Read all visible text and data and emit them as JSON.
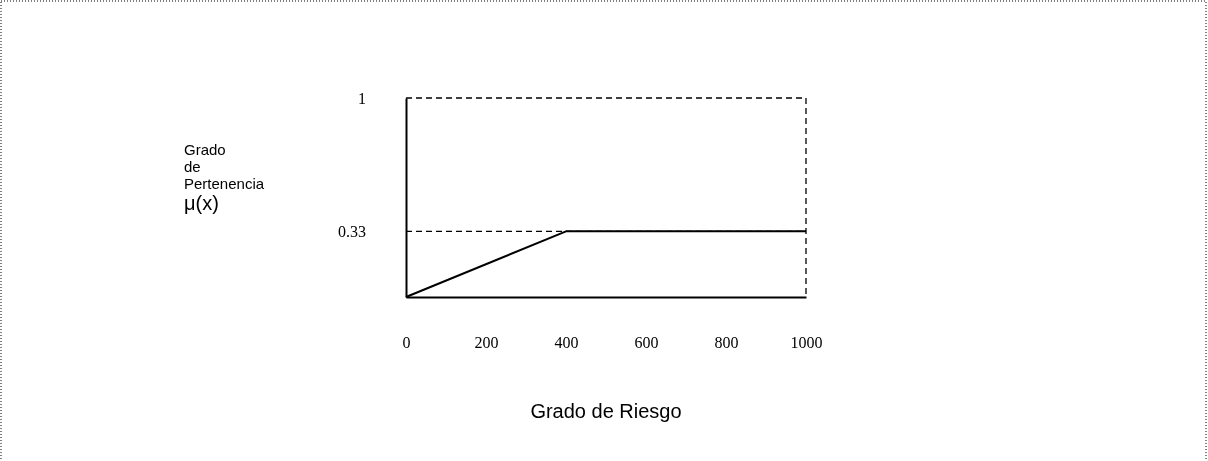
{
  "chart_data": {
    "type": "line",
    "xlabel": "Grado de Riesgo",
    "ylabel": "Grado\nde\nPertenencia\nμ(x)",
    "x": [
      0,
      400,
      1000
    ],
    "series": [
      {
        "color": "#000000",
        "values": [
          0,
          0.33,
          0.33
        ]
      }
    ],
    "xlim": [
      0,
      1000
    ],
    "xticks": [
      0,
      200,
      400,
      600,
      800,
      1000
    ],
    "ylim": [
      0,
      1
    ],
    "yticks": [
      0.33,
      1
    ],
    "ref_lines": [
      {
        "axis": "y",
        "value": 0.33,
        "line_style": "dashed",
        "color": "#000000"
      }
    ],
    "marker": "none",
    "line_style": "solid"
  }
}
